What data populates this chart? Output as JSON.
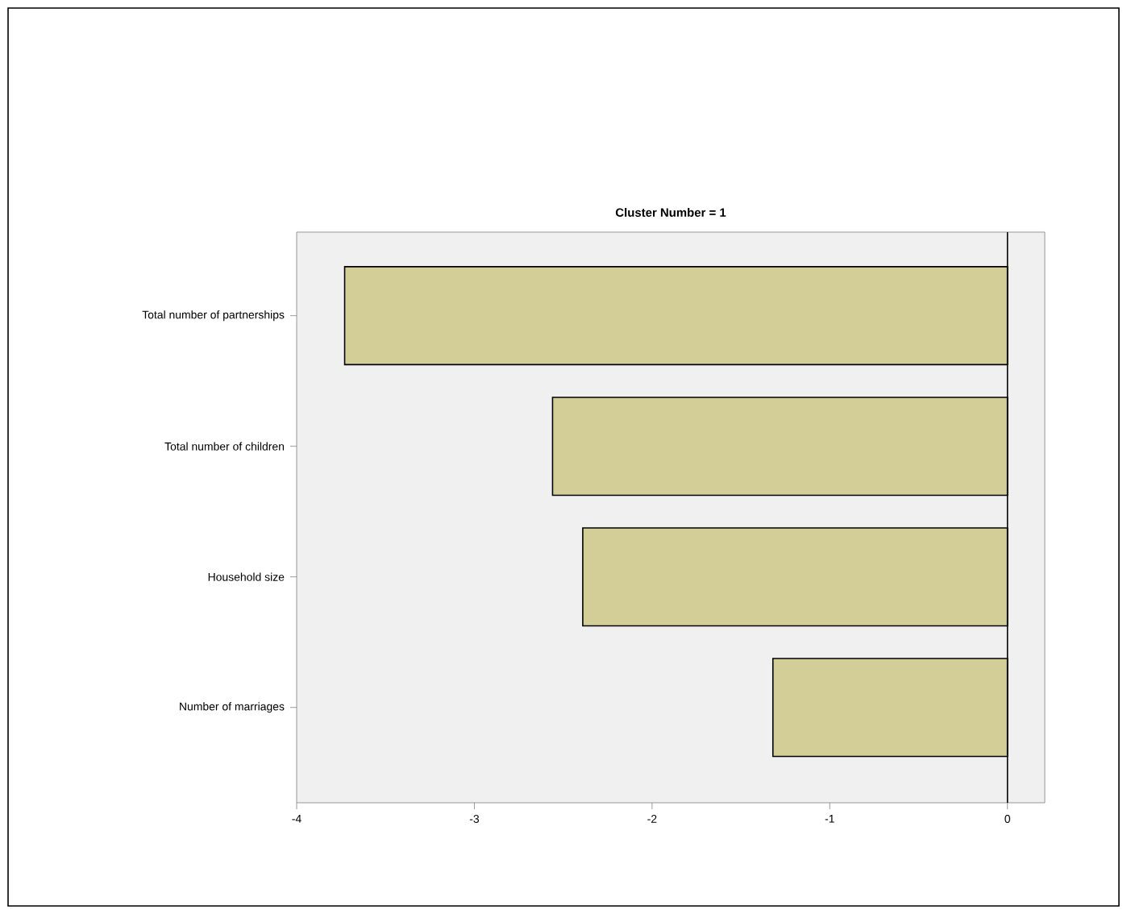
{
  "chart_data": {
    "type": "bar",
    "orientation": "horizontal",
    "title": "Cluster Number = 1",
    "categories": [
      "Total number of partnerships",
      "Total number of children",
      "Household size",
      "Number of marriages"
    ],
    "values": [
      -3.73,
      -2.56,
      -2.39,
      -1.32
    ],
    "color": "#d3ce98",
    "xlim": [
      -4,
      0.21
    ],
    "xticks": [
      -4,
      -3,
      -2,
      -1,
      0
    ],
    "ref_lines": [
      {
        "axis": "x",
        "value": 0
      }
    ]
  }
}
